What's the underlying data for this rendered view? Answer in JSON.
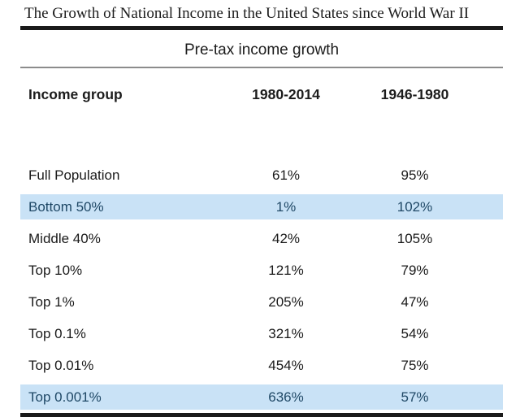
{
  "title": "The Growth of National Income in the United States since World War II",
  "table": {
    "subtitle": "Pre-tax income growth",
    "columns": [
      "Income group",
      "1980-2014",
      "1946-1980"
    ],
    "rows": [
      {
        "group": "Full Population",
        "growth_1980_2014": "61%",
        "growth_1946_1980": "95%",
        "highlighted": false
      },
      {
        "group": "Bottom 50%",
        "growth_1980_2014": "1%",
        "growth_1946_1980": "102%",
        "highlighted": true
      },
      {
        "group": "Middle 40%",
        "growth_1980_2014": "42%",
        "growth_1946_1980": "105%",
        "highlighted": false
      },
      {
        "group": "Top 10%",
        "growth_1980_2014": "121%",
        "growth_1946_1980": "79%",
        "highlighted": false
      },
      {
        "group": "Top 1%",
        "growth_1980_2014": "205%",
        "growth_1946_1980": "47%",
        "highlighted": false
      },
      {
        "group": "Top 0.1%",
        "growth_1980_2014": "321%",
        "growth_1946_1980": "54%",
        "highlighted": false
      },
      {
        "group": "Top 0.01%",
        "growth_1980_2014": "454%",
        "growth_1946_1980": "75%",
        "highlighted": false
      },
      {
        "group": "Top 0.001%",
        "growth_1980_2014": "636%",
        "growth_1946_1980": "57%",
        "highlighted": true
      }
    ]
  },
  "colors": {
    "highlight_bg": "#c9e2f6",
    "highlight_text": "#1f4866",
    "rule_color": "#1a1a1a",
    "gray_rule_color": "#8c8c8c"
  },
  "chart_data": {
    "type": "table",
    "title": "The Growth of National Income in the United States since World War II",
    "subtitle": "Pre-tax income growth",
    "columns": [
      "Income group",
      "1980-2014",
      "1946-1980"
    ],
    "categories": [
      "Full Population",
      "Bottom 50%",
      "Middle 40%",
      "Top 10%",
      "Top 1%",
      "Top 0.1%",
      "Top 0.01%",
      "Top 0.001%"
    ],
    "series": [
      {
        "name": "1980-2014",
        "values": [
          61,
          1,
          42,
          121,
          205,
          321,
          454,
          636
        ],
        "unit": "%"
      },
      {
        "name": "1946-1980",
        "values": [
          95,
          102,
          105,
          79,
          47,
          54,
          75,
          57
        ],
        "unit": "%"
      }
    ],
    "highlighted_rows": [
      "Bottom 50%",
      "Top 0.001%"
    ]
  }
}
